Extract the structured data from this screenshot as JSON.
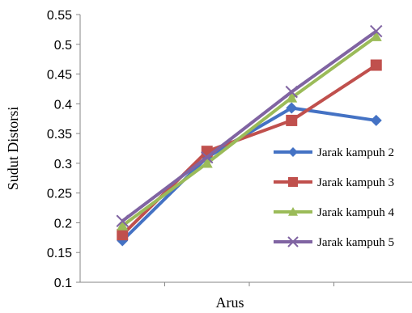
{
  "chart_data": {
    "type": "line",
    "xlabel": "Arus",
    "ylabel": "Sudut Distorsi",
    "ylim": [
      0.1,
      0.55
    ],
    "yticks": [
      0.1,
      0.15,
      0.2,
      0.25,
      0.3,
      0.35,
      0.4,
      0.45,
      0.5,
      0.55
    ],
    "ytick_labels": [
      "0.1",
      "0.15",
      "0.2",
      "0.25",
      "0.3",
      "0.35",
      "0.4",
      "0.45",
      "0.5",
      "0.55"
    ],
    "x": [
      1,
      2,
      3,
      4
    ],
    "grid": false,
    "legend_position": "right",
    "series": [
      {
        "name": "Jarak kampuh 2",
        "values": [
          0.17,
          0.31,
          0.393,
          0.372
        ],
        "color": "#4472C4",
        "marker": "diamond"
      },
      {
        "name": "Jarak kampuh  3",
        "values": [
          0.18,
          0.32,
          0.372,
          0.465
        ],
        "color": "#C0504D",
        "marker": "square"
      },
      {
        "name": "Jarak kampuh  4",
        "values": [
          0.195,
          0.3,
          0.41,
          0.513
        ],
        "color": "#9BBB59",
        "marker": "triangle"
      },
      {
        "name": "Jarak kampuh  5",
        "values": [
          0.203,
          0.31,
          0.42,
          0.522
        ],
        "color": "#8064A2",
        "marker": "x"
      }
    ]
  }
}
